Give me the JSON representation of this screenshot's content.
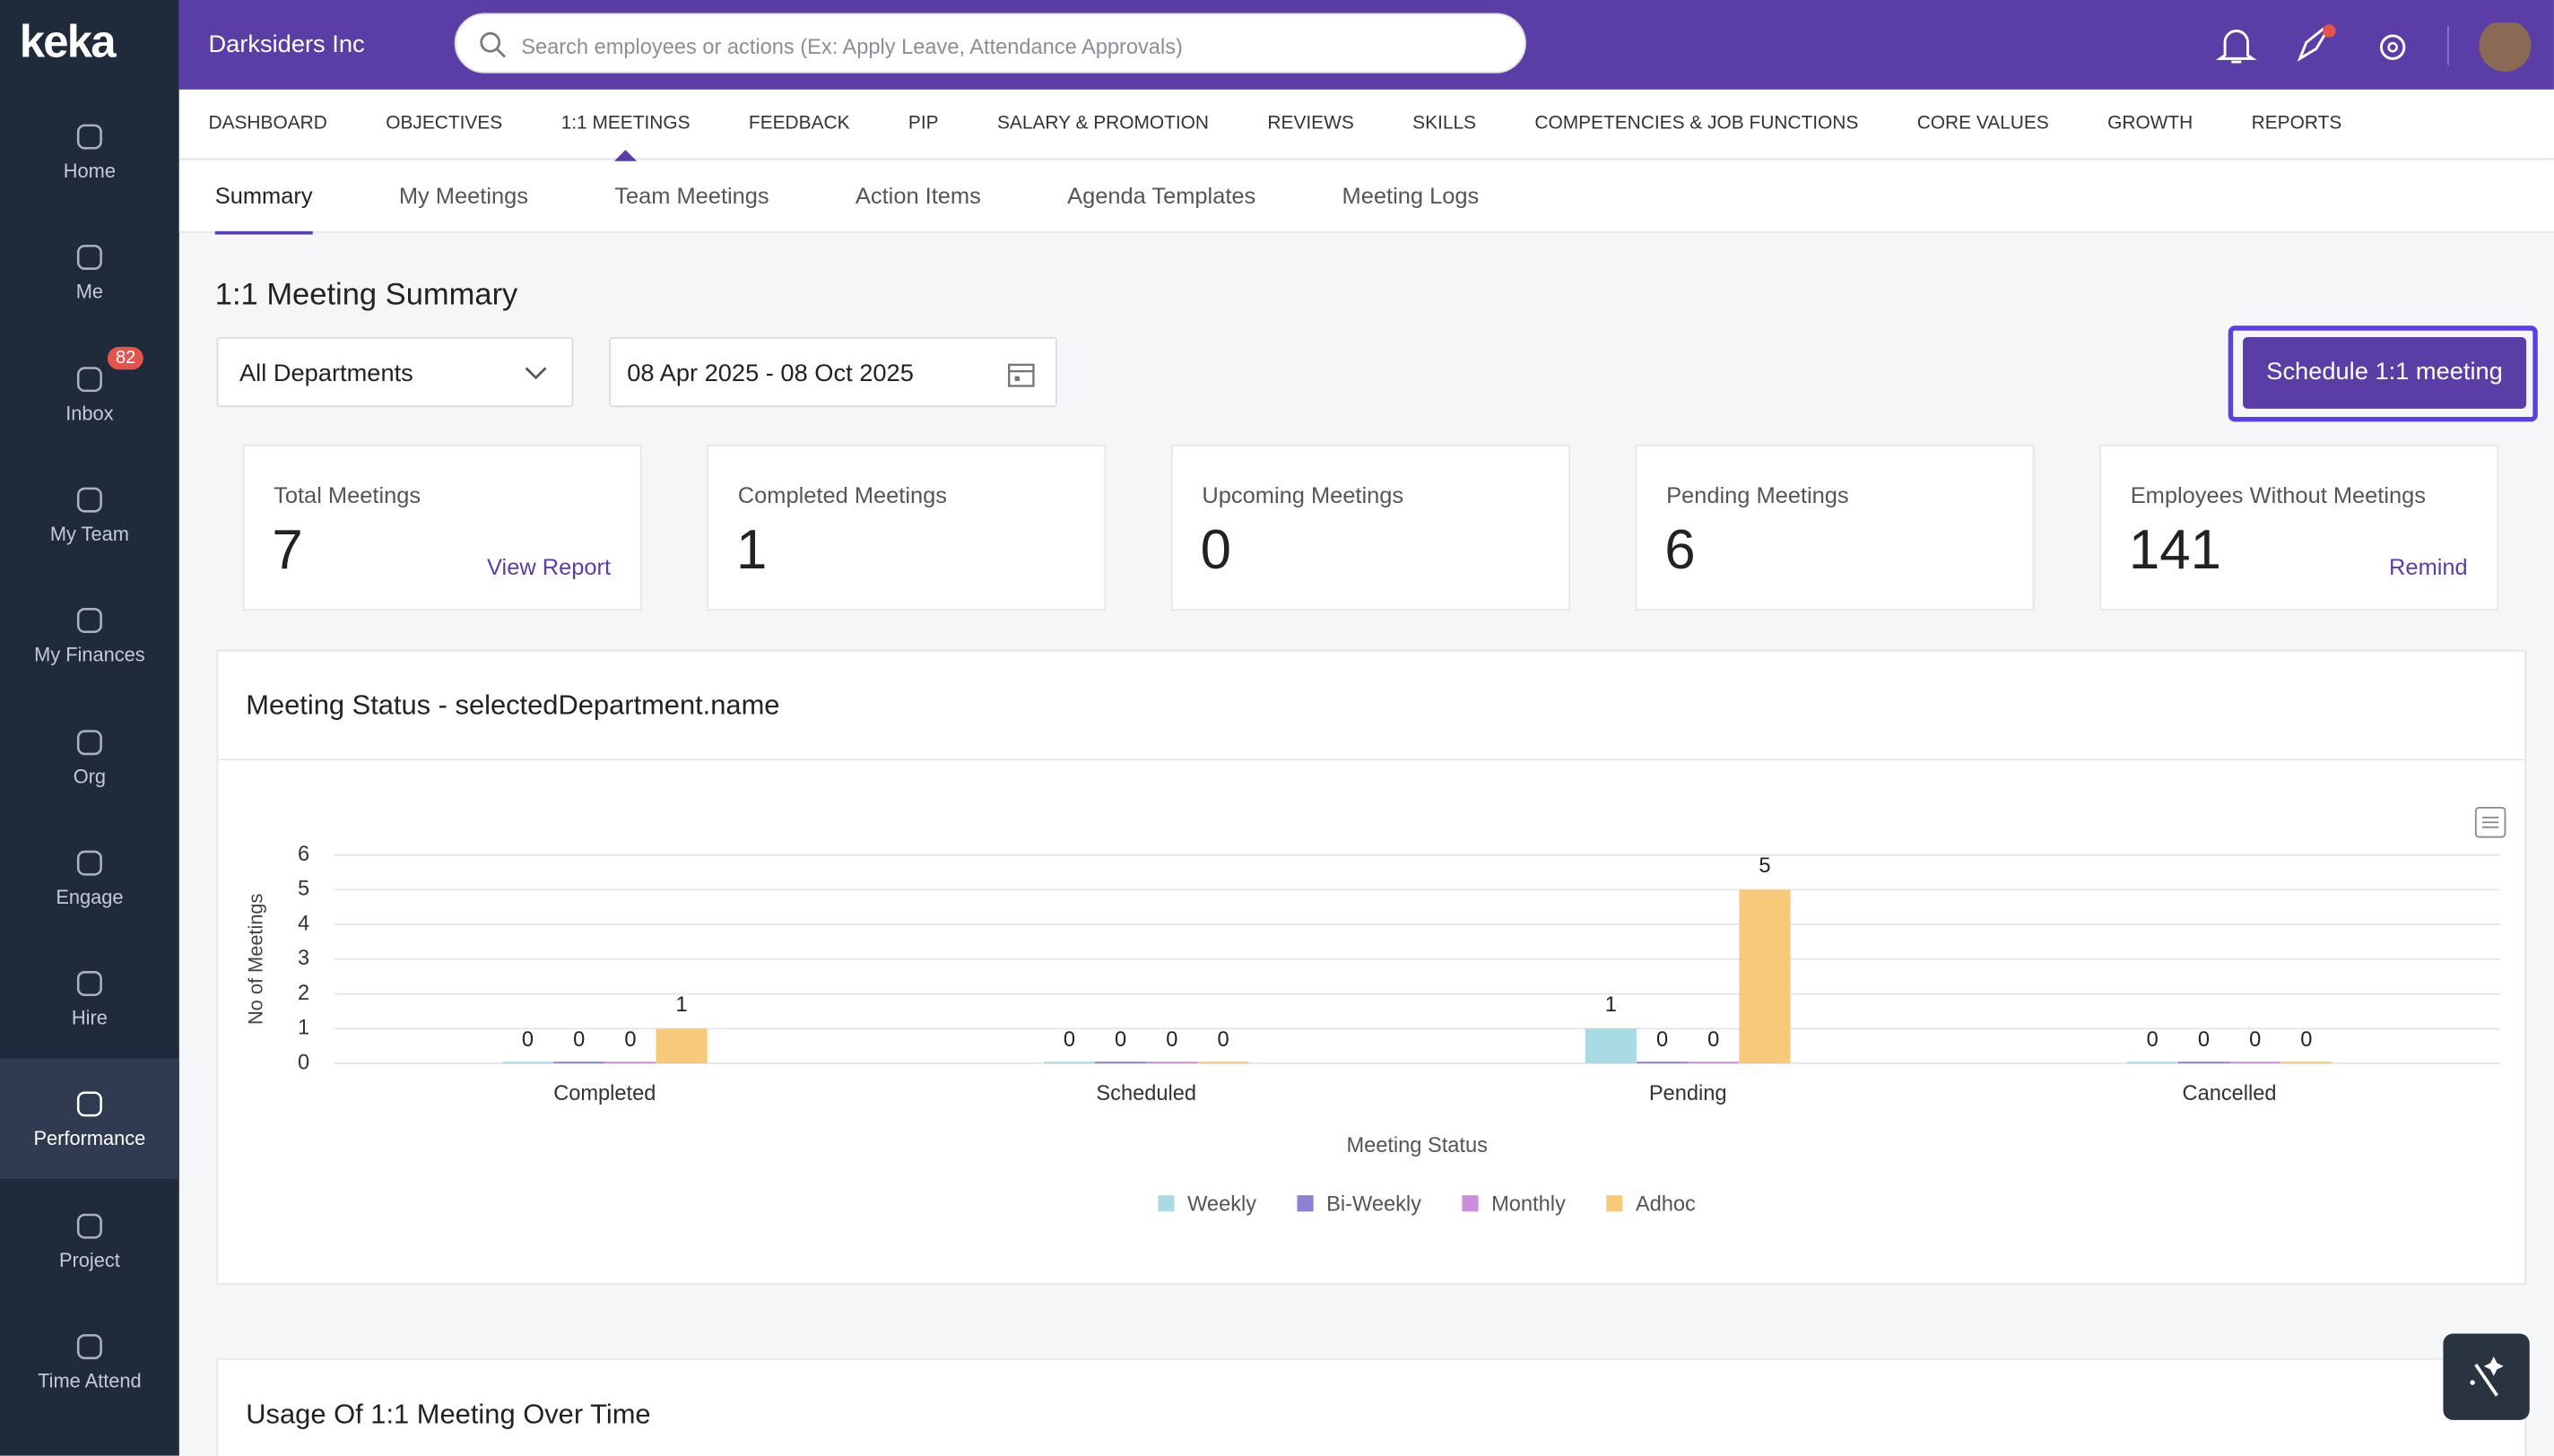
{
  "brand": "keka",
  "company": "Darksiders Inc",
  "search_placeholder": "Search employees or actions (Ex: Apply Leave, Attendance Approvals)",
  "sidebar": [
    {
      "label": "Home"
    },
    {
      "label": "Me"
    },
    {
      "label": "Inbox",
      "badge": "82"
    },
    {
      "label": "My Team"
    },
    {
      "label": "My Finances"
    },
    {
      "label": "Org"
    },
    {
      "label": "Engage"
    },
    {
      "label": "Hire"
    },
    {
      "label": "Performance",
      "active": true
    },
    {
      "label": "Project"
    },
    {
      "label": "Time Attend"
    }
  ],
  "nav": [
    {
      "label": "DASHBOARD"
    },
    {
      "label": "OBJECTIVES"
    },
    {
      "label": "1:1 MEETINGS",
      "active": true
    },
    {
      "label": "FEEDBACK"
    },
    {
      "label": "PIP"
    },
    {
      "label": "SALARY & PROMOTION"
    },
    {
      "label": "REVIEWS"
    },
    {
      "label": "SKILLS"
    },
    {
      "label": "COMPETENCIES & JOB FUNCTIONS"
    },
    {
      "label": "CORE VALUES"
    },
    {
      "label": "GROWTH"
    },
    {
      "label": "REPORTS"
    }
  ],
  "subtabs": [
    {
      "label": "Summary",
      "active": true
    },
    {
      "label": "My Meetings"
    },
    {
      "label": "Team Meetings"
    },
    {
      "label": "Action Items"
    },
    {
      "label": "Agenda Templates"
    },
    {
      "label": "Meeting Logs"
    }
  ],
  "page_title": "1:1 Meeting Summary",
  "filters": {
    "department": "All Departments",
    "date_range": "08 Apr 2025 - 08 Oct 2025"
  },
  "button": "Schedule 1:1 meeting",
  "cards": [
    {
      "label": "Total Meetings",
      "value": 7,
      "link": "View Report"
    },
    {
      "label": "Completed Meetings",
      "value": 1
    },
    {
      "label": "Upcoming Meetings",
      "value": 0
    },
    {
      "label": "Pending Meetings",
      "value": 6
    },
    {
      "label": "Employees Without Meetings",
      "value": 141,
      "link": "Remind"
    }
  ],
  "chart_data": {
    "type": "bar",
    "title": "Meeting Status - selectedDepartment.name",
    "x_label": "Meeting Status",
    "y_label": "No of Meetings",
    "categories": [
      "Completed",
      "Scheduled",
      "Pending",
      "Cancelled"
    ],
    "series": [
      {
        "name": "Weekly",
        "color": "#a9dbe3",
        "values": [
          0,
          0,
          1,
          0
        ]
      },
      {
        "name": "Bi-Weekly",
        "color": "#8f7fd0",
        "values": [
          0,
          0,
          0,
          0
        ]
      },
      {
        "name": "Monthly",
        "color": "#c98fd8",
        "values": [
          0,
          0,
          0,
          0
        ]
      },
      {
        "name": "Adhoc",
        "color": "#f8c97a",
        "values": [
          1,
          0,
          5,
          0
        ]
      }
    ],
    "ylim": [
      0,
      6
    ],
    "yticks": [
      0,
      1,
      2,
      3,
      4,
      5,
      6
    ],
    "grid": true,
    "data_labels": true
  },
  "second_panel_title": "Usage Of 1:1 Meeting Over Time"
}
